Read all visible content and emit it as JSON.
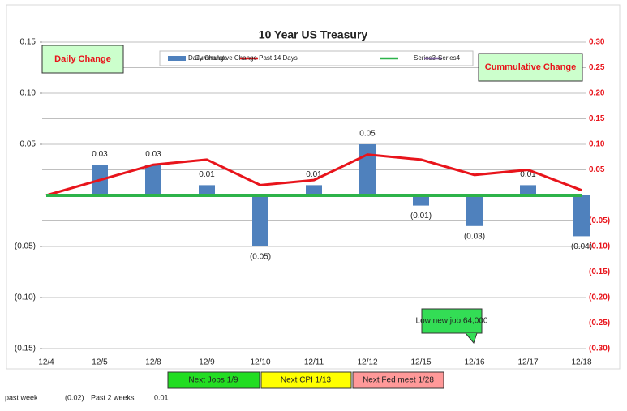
{
  "chart_data": {
    "type": "bar",
    "title": "10 Year US Treasury",
    "categories": [
      "12/4",
      "12/5",
      "12/8",
      "12/9",
      "12/10",
      "12/11",
      "12/12",
      "12/15",
      "12/16",
      "12/17",
      "12/18"
    ],
    "series": [
      {
        "name": "Daily Change",
        "type": "bar",
        "color": "#4f81bd",
        "values": [
          null,
          0.03,
          0.03,
          0.01,
          -0.05,
          0.01,
          0.05,
          -0.01,
          -0.03,
          0.01,
          -0.04
        ],
        "value_labels": [
          null,
          "0.03",
          "0.03",
          "0.01",
          "(0.05)",
          "0.01",
          "0.05",
          "(0.01)",
          "(0.03)",
          "0.01",
          "(0.04)"
        ]
      },
      {
        "name": "Cummulative Change Past 14 Days",
        "type": "line",
        "axis": "y2",
        "color": "#e8141b",
        "values": [
          0,
          0.03,
          0.06,
          0.07,
          0.02,
          0.03,
          0.08,
          0.07,
          0.04,
          0.05,
          0.01
        ]
      },
      {
        "name": "Series3",
        "type": "line",
        "color": "#2db34a",
        "values": [
          0,
          0,
          0,
          0,
          0,
          0,
          0,
          0,
          0,
          0,
          0
        ]
      },
      {
        "name": "Series4",
        "type": "line",
        "color": "#8064a2",
        "values": [
          null,
          null,
          null,
          null,
          null,
          null,
          null,
          null,
          null,
          null,
          null
        ]
      }
    ],
    "ylim": [
      -0.15,
      0.15
    ],
    "yticks": [
      0.15,
      {
        "value": 0.1,
        "label": "0.10"
      },
      0.05,
      {
        "value": -0.05,
        "label": "(0.05)"
      },
      {
        "value": -0.1,
        "label": "(0.10)"
      },
      {
        "value": -0.15,
        "label": "(0.15)"
      }
    ],
    "y2lim": [
      -0.3,
      0.3
    ],
    "y2ticks": [
      {
        "value": 0.3,
        "label": "0.30"
      },
      0.25,
      {
        "value": 0.2,
        "label": "0.20"
      },
      0.15,
      {
        "value": 0.1,
        "label": "0.10"
      },
      0.05,
      {
        "value": -0.05,
        "label": "(0.05)"
      },
      {
        "value": -0.1,
        "label": "(0.10)"
      },
      {
        "value": -0.15,
        "label": "(0.15)"
      },
      {
        "value": -0.2,
        "label": "(0.20)"
      },
      {
        "value": -0.25,
        "label": "(0.25)"
      },
      {
        "value": -0.3,
        "label": "(0.30)"
      }
    ],
    "grid": true,
    "legend": "top",
    "y_axis_box": "Daily Change",
    "y2_axis_box": "Cummulative Change",
    "annotation": "Low new job 64,000"
  },
  "events": [
    "Next Jobs 1/9",
    "Next CPI 1/13",
    "Next Fed meet 1/28"
  ],
  "footer": {
    "label1": "past week",
    "value1": "(0.02)",
    "label2": "Past 2 weeks",
    "value2": "0.01"
  }
}
